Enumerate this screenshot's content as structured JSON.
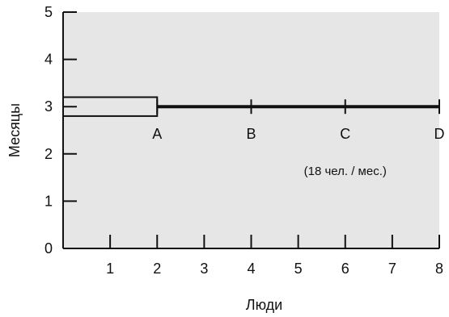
{
  "chart_data": {
    "type": "line",
    "xlabel": "Люди",
    "ylabel": "Месяцы",
    "xlim": [
      0,
      8
    ],
    "ylim": [
      0,
      5
    ],
    "x_ticks": [
      1,
      2,
      3,
      4,
      5,
      6,
      7,
      8
    ],
    "y_ticks": [
      0,
      1,
      2,
      3,
      4,
      5
    ],
    "series": [
      {
        "x": [
          2,
          8
        ],
        "y": [
          3,
          3
        ]
      }
    ],
    "box": {
      "x": [
        0,
        2
      ],
      "y": [
        2.8,
        3.2
      ]
    },
    "points": [
      {
        "label": "A",
        "x": 2,
        "y": 3
      },
      {
        "label": "B",
        "x": 4,
        "y": 3
      },
      {
        "label": "C",
        "x": 6,
        "y": 3
      },
      {
        "label": "D",
        "x": 8,
        "y": 3
      }
    ],
    "annotation": "(18 чел. / мес.)",
    "plot_background": "#e6e6e6",
    "line_color": "#111111",
    "grid": false
  }
}
